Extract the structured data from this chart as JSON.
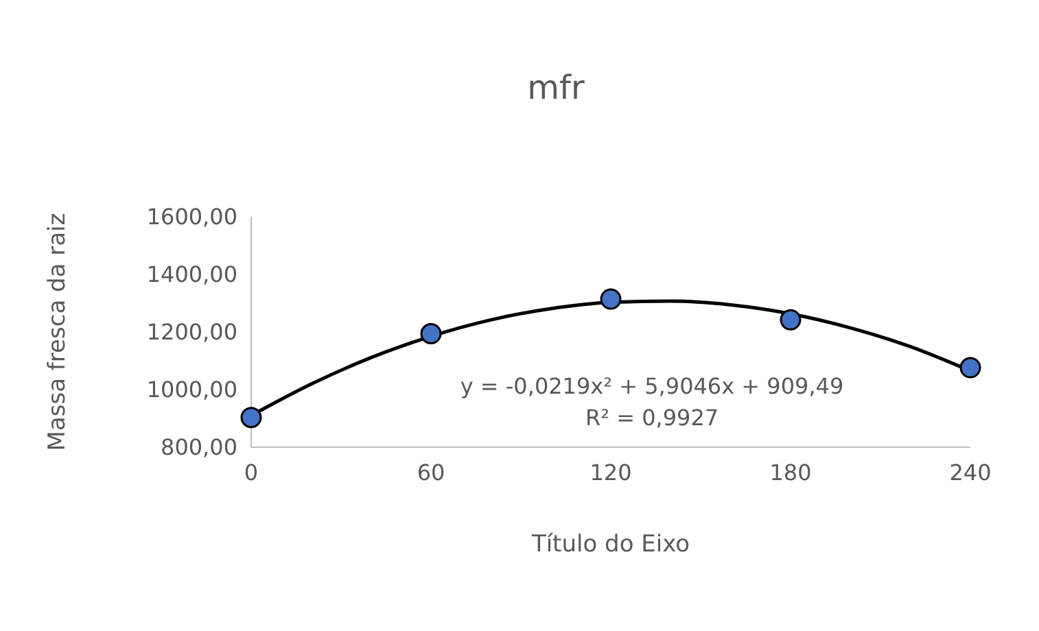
{
  "chart_data": {
    "type": "scatter",
    "title": "mfr",
    "xlabel": "Título do Eixo",
    "ylabel": "Massa fresca da raiz",
    "xlim": [
      0,
      240
    ],
    "xticks": [
      0,
      60,
      120,
      180,
      240
    ],
    "ylim": [
      800,
      1600
    ],
    "yticks": [
      {
        "value": 800,
        "label": "800,00"
      },
      {
        "value": 1000,
        "label": "1000,00"
      },
      {
        "value": 1200,
        "label": "1200,00"
      },
      {
        "value": 1400,
        "label": "1400,00"
      },
      {
        "value": 1600,
        "label": "1600,00"
      }
    ],
    "grid": false,
    "marker": "circle",
    "series": [
      {
        "color": "#4472c4",
        "x": [
          0,
          60,
          120,
          180,
          240
        ],
        "values": [
          903,
          1194,
          1314,
          1242,
          1076
        ]
      },
      {
        "type": "line",
        "color": "#000000",
        "line_style": "solid",
        "marker": "none",
        "x": [
          0,
          20,
          40,
          60,
          80,
          100,
          120,
          140,
          160,
          180,
          200,
          220,
          240
        ],
        "values": [
          910,
          1019,
          1111,
          1185,
          1242,
          1281,
          1303,
          1307,
          1294,
          1263,
          1214,
          1149,
          1065
        ]
      }
    ],
    "annotations": [
      "y = -0,0219x² + 5,9046x + 909,49",
      "R² = 0,9927"
    ]
  }
}
